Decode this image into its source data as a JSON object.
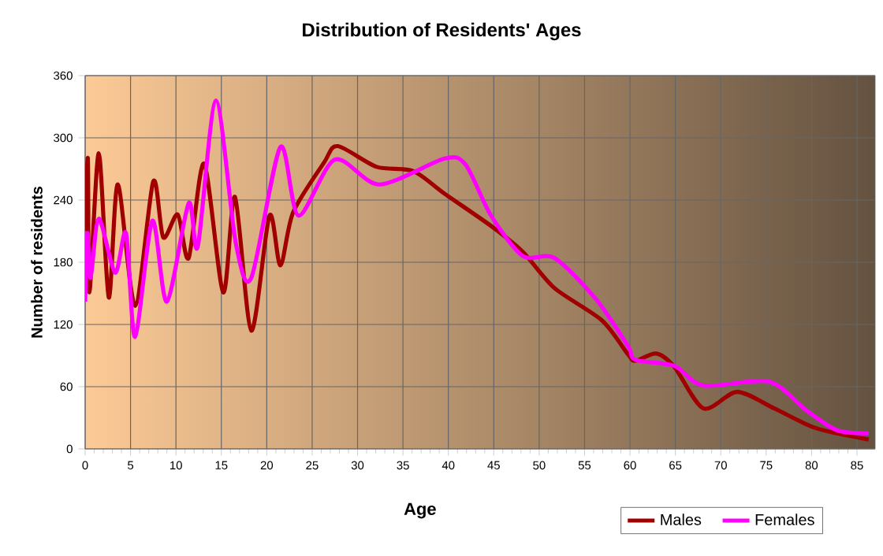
{
  "chart_data": {
    "type": "line",
    "title": "Distribution of Residents' Ages",
    "xlabel": "Age",
    "ylabel": "Number of residents",
    "xlim": [
      0,
      87
    ],
    "ylim": [
      0,
      360
    ],
    "xticks": [
      0,
      5,
      10,
      15,
      20,
      25,
      30,
      35,
      40,
      45,
      50,
      55,
      60,
      65,
      70,
      75,
      80,
      85
    ],
    "yticks": [
      0,
      60,
      120,
      180,
      240,
      300,
      360
    ],
    "grid": true,
    "legend": "bottom right",
    "series": [
      {
        "name": "Males",
        "color": "#a00000",
        "x": [
          0,
          0.3,
          0.47,
          1.5,
          2.6,
          3.6,
          5.5,
          7.5,
          8.6,
          10.2,
          11.4,
          13.1,
          15.2,
          16.5,
          18.3,
          20.3,
          21.5,
          22.9,
          26.3,
          27.8,
          32.1,
          36.1,
          39.6,
          44.7,
          48.2,
          51.7,
          56.9,
          59.8,
          60.6,
          62.9,
          64.9,
          68.1,
          71.8,
          75.9,
          80.5,
          86.3
        ],
        "values": [
          210,
          280,
          151,
          285,
          146,
          255,
          138,
          258,
          204,
          226,
          184,
          275,
          151,
          243,
          114,
          225,
          177,
          228,
          276,
          292,
          272,
          268,
          246,
          215,
          190,
          155,
          124,
          91,
          85,
          92,
          79,
          39,
          55,
          39,
          20,
          9
        ]
      },
      {
        "name": "Females",
        "color": "#ff00ff",
        "x": [
          0,
          0.25,
          0.6,
          1.5,
          3.3,
          4.5,
          5.5,
          7.4,
          9,
          11.4,
          12.4,
          14.4,
          16.6,
          18.3,
          21.5,
          23.5,
          27.5,
          32.4,
          39.6,
          41.9,
          44.7,
          48.2,
          51.7,
          56.3,
          59.8,
          60.6,
          64.9,
          68.1,
          75.3,
          79.3,
          82.8,
          86.3
        ],
        "values": [
          142,
          208,
          165,
          222,
          170,
          208,
          108,
          220,
          142,
          237,
          195,
          336,
          198,
          165,
          291,
          225,
          279,
          255,
          280,
          274,
          225,
          186,
          184,
          144,
          99,
          86,
          80,
          61,
          65,
          38,
          18,
          15
        ]
      }
    ]
  }
}
